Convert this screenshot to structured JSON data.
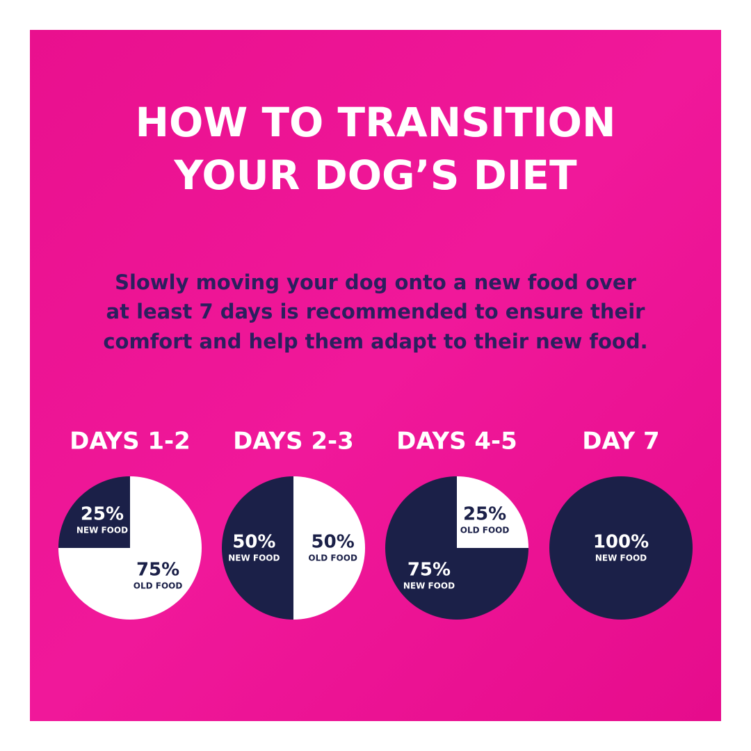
{
  "title": [
    "HOW TO TRANSITION",
    "YOUR DOG’S DIET"
  ],
  "subtitle": [
    "Slowly moving your dog onto a new food over",
    "at least 7 days is recommended to ensure their",
    "comfort and help them adapt to their new food."
  ],
  "chart_data": [
    {
      "type": "pie",
      "title": "DAYS 1-2",
      "categories": [
        "NEW FOOD",
        "OLD FOOD"
      ],
      "values": [
        25,
        75
      ],
      "value_labels": [
        "25%",
        "75%"
      ],
      "colors": [
        "#1b2048",
        "#ffffff"
      ]
    },
    {
      "type": "pie",
      "title": "DAYS 2-3",
      "categories": [
        "NEW FOOD",
        "OLD FOOD"
      ],
      "values": [
        50,
        50
      ],
      "value_labels": [
        "50%",
        "50%"
      ],
      "colors": [
        "#1b2048",
        "#ffffff"
      ]
    },
    {
      "type": "pie",
      "title": "DAYS 4-5",
      "categories": [
        "NEW FOOD",
        "OLD FOOD"
      ],
      "values": [
        75,
        25
      ],
      "value_labels": [
        "75%",
        "25%"
      ],
      "colors": [
        "#1b2048",
        "#ffffff"
      ]
    },
    {
      "type": "pie",
      "title": "DAY 7",
      "categories": [
        "NEW FOOD"
      ],
      "values": [
        100
      ],
      "value_labels": [
        "100%"
      ],
      "colors": [
        "#1b2048"
      ]
    }
  ]
}
